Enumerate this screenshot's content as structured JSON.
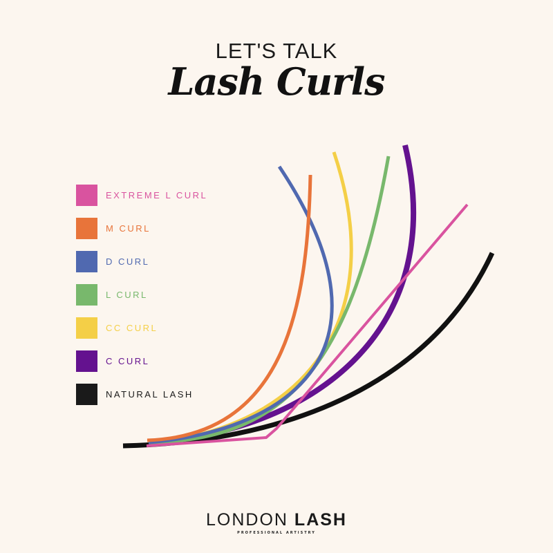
{
  "header": {
    "line1": "LET'S TALK",
    "line2": "Lash Curls"
  },
  "legend": [
    {
      "label": "EXTREME L CURL",
      "color": "#d9539f"
    },
    {
      "label": "M CURL",
      "color": "#e8743a"
    },
    {
      "label": "D CURL",
      "color": "#5069b0"
    },
    {
      "label": "L CURL",
      "color": "#78b86c"
    },
    {
      "label": "CC CURL",
      "color": "#f4cf47"
    },
    {
      "label": "C CURL",
      "color": "#64128f"
    },
    {
      "label": "NATURAL LASH",
      "color": "#1a1a1a"
    }
  ],
  "logo": {
    "word1": "LONDON",
    "word2": "LASH",
    "tagline": "PROFESSIONAL ARTISTRY"
  },
  "background": "#fcf6ef"
}
